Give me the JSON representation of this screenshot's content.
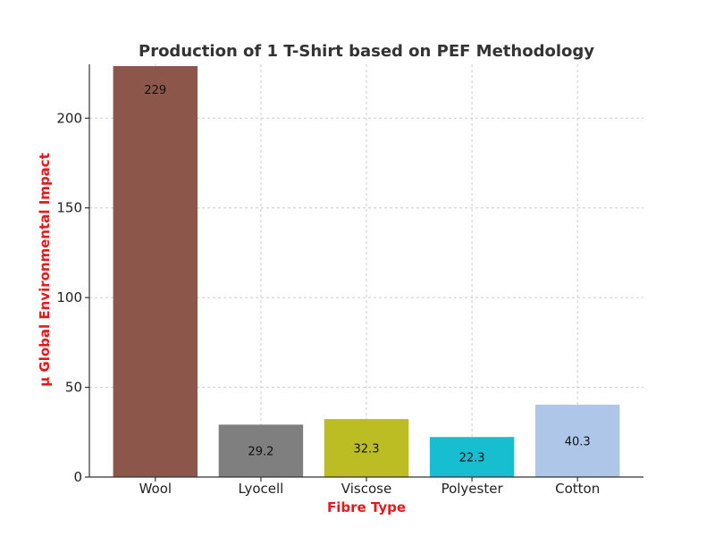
{
  "chart_data": {
    "type": "bar",
    "title": "Production of 1 T-Shirt based on PEF Methodology",
    "xlabel": "Fibre Type",
    "ylabel": "μ Global Environmental Impact",
    "categories": [
      "Wool",
      "Lyocell",
      "Viscose",
      "Polyester",
      "Cotton"
    ],
    "values": [
      229,
      29.2,
      32.3,
      22.3,
      40.3
    ],
    "value_labels": [
      "229",
      "29.2",
      "32.3",
      "22.3",
      "40.3"
    ],
    "colors": [
      "#8c564b",
      "#7f7f7f",
      "#bcbd22",
      "#17becf",
      "#aec7e8"
    ],
    "ylim": [
      0,
      230
    ],
    "yticks": [
      0,
      50,
      100,
      150,
      200
    ],
    "grid": true,
    "label_color": "#e31a1c"
  }
}
